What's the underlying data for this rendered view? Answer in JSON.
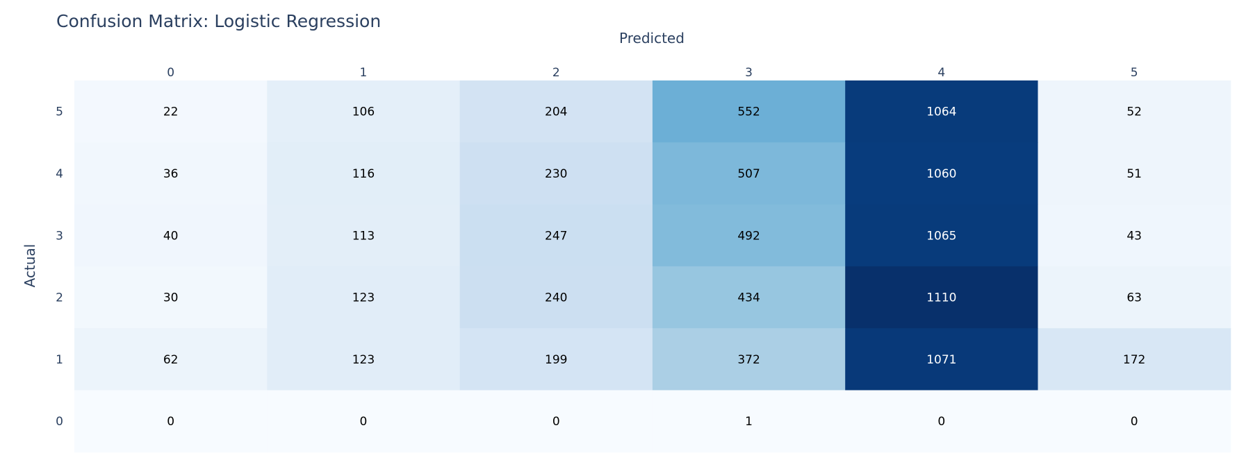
{
  "chart_data": {
    "type": "heatmap",
    "title": "Confusion Matrix: Logistic Regression",
    "xlabel": "Predicted",
    "ylabel": "Actual",
    "x_categories": [
      "0",
      "1",
      "2",
      "3",
      "4",
      "5"
    ],
    "y_categories": [
      "5",
      "4",
      "3",
      "2",
      "1",
      "0"
    ],
    "values": [
      [
        22,
        106,
        204,
        552,
        1064,
        52
      ],
      [
        36,
        116,
        230,
        507,
        1060,
        51
      ],
      [
        40,
        113,
        247,
        492,
        1065,
        43
      ],
      [
        30,
        123,
        240,
        434,
        1110,
        63
      ],
      [
        62,
        123,
        199,
        372,
        1071,
        172
      ],
      [
        0,
        0,
        0,
        1,
        0,
        0
      ]
    ],
    "colorscale": "Blues",
    "xaxis_side": "top",
    "show_cell_labels": true
  },
  "colors": {
    "title": "#2a3f5f",
    "axis_text": "#2a3f5f",
    "label_dark": "#000000",
    "label_light": "#ffffff"
  }
}
